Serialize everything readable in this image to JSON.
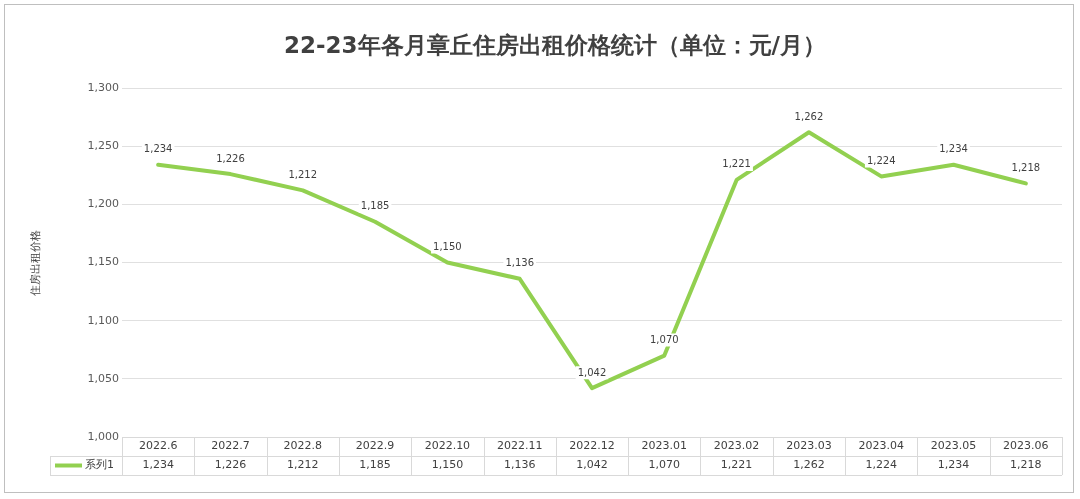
{
  "chart_data": {
    "type": "line",
    "title": "22-23年各月章丘住房出租价格统计（单位：元/月）",
    "ylabel": "住房出租价格",
    "categories": [
      "2022.6",
      "2022.7",
      "2022.8",
      "2022.9",
      "2022.10",
      "2022.11",
      "2022.12",
      "2023.01",
      "2023.02",
      "2023.03",
      "2023.04",
      "2023.05",
      "2023.06"
    ],
    "series": [
      {
        "name": "系列1",
        "color": "#92d050",
        "values": [
          1234,
          1226,
          1212,
          1185,
          1150,
          1136,
          1042,
          1070,
          1221,
          1262,
          1224,
          1234,
          1218
        ],
        "value_labels": [
          "1,234",
          "1,226",
          "1,212",
          "1,185",
          "1,150",
          "1,136",
          "1,042",
          "1,070",
          "1,221",
          "1,262",
          "1,224",
          "1,234",
          "1,218"
        ]
      }
    ],
    "ylim": [
      1000,
      1300
    ],
    "yticks": [
      {
        "value": 1000,
        "label": "1,000"
      },
      {
        "value": 1050,
        "label": "1,050"
      },
      {
        "value": 1100,
        "label": "1,100"
      },
      {
        "value": 1150,
        "label": "1,150"
      },
      {
        "value": 1200,
        "label": "1,200"
      },
      {
        "value": 1250,
        "label": "1,250"
      },
      {
        "value": 1300,
        "label": "1,300"
      }
    ],
    "grid": "y",
    "legend": "bottom left",
    "marker": "none",
    "line_style": "solid"
  }
}
